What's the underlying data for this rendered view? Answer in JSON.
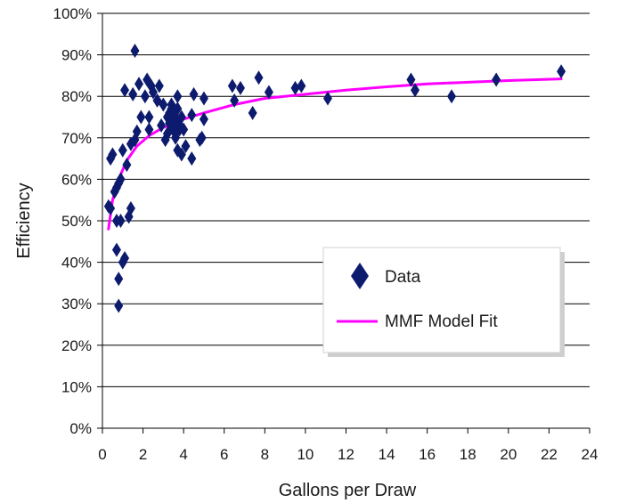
{
  "chart_data": {
    "type": "scatter",
    "xlabel": "Gallons per Draw",
    "ylabel": "Efficiency",
    "xlim": [
      0,
      24
    ],
    "ylim": [
      0,
      100
    ],
    "x_ticks": [
      "0",
      "2",
      "4",
      "6",
      "8",
      "10",
      "12",
      "14",
      "16",
      "18",
      "20",
      "22",
      "24"
    ],
    "y_ticks": [
      "0%",
      "10%",
      "20%",
      "30%",
      "40%",
      "50%",
      "60%",
      "70%",
      "80%",
      "90%",
      "100%"
    ],
    "grid": "horizontal",
    "legend_position": "center-right",
    "series": [
      {
        "name": "Data",
        "kind": "scatter",
        "marker": "diamond",
        "color": "#0d1b6e",
        "points": [
          [
            0.3,
            53.5
          ],
          [
            0.4,
            53
          ],
          [
            0.4,
            65
          ],
          [
            0.5,
            66
          ],
          [
            0.6,
            57
          ],
          [
            0.7,
            58
          ],
          [
            0.7,
            50
          ],
          [
            0.7,
            43
          ],
          [
            0.8,
            59
          ],
          [
            0.8,
            36
          ],
          [
            0.8,
            29.5
          ],
          [
            0.9,
            60
          ],
          [
            0.9,
            50
          ],
          [
            1.0,
            67
          ],
          [
            1.0,
            40
          ],
          [
            1.1,
            41
          ],
          [
            1.1,
            81.5
          ],
          [
            1.2,
            63.5
          ],
          [
            1.3,
            51
          ],
          [
            1.4,
            53
          ],
          [
            1.4,
            68.5
          ],
          [
            1.5,
            80.5
          ],
          [
            1.6,
            69.5
          ],
          [
            1.6,
            91
          ],
          [
            1.7,
            71.5
          ],
          [
            1.8,
            83
          ],
          [
            1.9,
            75
          ],
          [
            2.1,
            80
          ],
          [
            2.2,
            84
          ],
          [
            2.3,
            72
          ],
          [
            2.3,
            75
          ],
          [
            2.4,
            82.5
          ],
          [
            2.5,
            81
          ],
          [
            2.7,
            79
          ],
          [
            2.8,
            82.5
          ],
          [
            2.9,
            73
          ],
          [
            3.0,
            78
          ],
          [
            3.1,
            69.5
          ],
          [
            3.2,
            75
          ],
          [
            3.2,
            71
          ],
          [
            3.3,
            76
          ],
          [
            3.3,
            73.5
          ],
          [
            3.4,
            78
          ],
          [
            3.4,
            77
          ],
          [
            3.4,
            75
          ],
          [
            3.4,
            74
          ],
          [
            3.5,
            73
          ],
          [
            3.5,
            72
          ],
          [
            3.5,
            76
          ],
          [
            3.6,
            75
          ],
          [
            3.6,
            71
          ],
          [
            3.6,
            70
          ],
          [
            3.7,
            80
          ],
          [
            3.7,
            77
          ],
          [
            3.7,
            74
          ],
          [
            3.7,
            67
          ],
          [
            3.8,
            73
          ],
          [
            3.8,
            72
          ],
          [
            3.9,
            75
          ],
          [
            3.9,
            66
          ],
          [
            4.0,
            72
          ],
          [
            4.1,
            68
          ],
          [
            4.4,
            75.5
          ],
          [
            4.4,
            65
          ],
          [
            4.5,
            80.5
          ],
          [
            4.8,
            69.5
          ],
          [
            4.9,
            70
          ],
          [
            5.0,
            79.5
          ],
          [
            5.0,
            74.5
          ],
          [
            6.4,
            82.5
          ],
          [
            6.5,
            79
          ],
          [
            6.8,
            82
          ],
          [
            7.4,
            76
          ],
          [
            7.7,
            84.5
          ],
          [
            8.2,
            81
          ],
          [
            9.5,
            82
          ],
          [
            9.8,
            82.5
          ],
          [
            11.1,
            79.5
          ],
          [
            15.2,
            84
          ],
          [
            15.4,
            81.5
          ],
          [
            17.2,
            80
          ],
          [
            19.4,
            84
          ],
          [
            22.6,
            86
          ]
        ]
      },
      {
        "name": "MMF Model Fit",
        "kind": "line",
        "color": "#ff00ff",
        "points": [
          [
            0.3,
            48
          ],
          [
            0.5,
            55
          ],
          [
            0.8,
            60
          ],
          [
            1.2,
            64.5
          ],
          [
            1.7,
            68
          ],
          [
            2.3,
            70.5
          ],
          [
            3.0,
            72.5
          ],
          [
            4.0,
            74.5
          ],
          [
            5.0,
            76
          ],
          [
            6.5,
            78
          ],
          [
            8.0,
            79.5
          ],
          [
            10.0,
            80.5
          ],
          [
            12.0,
            81.5
          ],
          [
            14.0,
            82.3
          ],
          [
            16.0,
            83
          ],
          [
            18.0,
            83.4
          ],
          [
            20.0,
            83.8
          ],
          [
            22.6,
            84.2
          ]
        ]
      }
    ]
  }
}
